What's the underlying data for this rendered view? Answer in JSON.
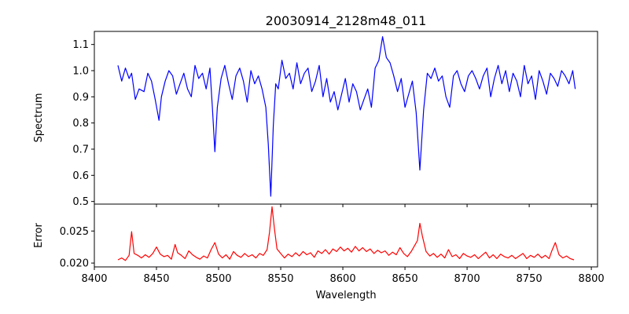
{
  "chart_data": [
    {
      "type": "line",
      "title": "20030914_2128m48_011",
      "ylabel": "Spectrum",
      "xlim": [
        8400,
        8805
      ],
      "ylim": [
        0.49,
        1.15
      ],
      "xticks": [
        8400,
        8450,
        8500,
        8550,
        8600,
        8650,
        8700,
        8750,
        8800
      ],
      "xtick_labels_visible": false,
      "yticks": [
        0.5,
        0.6,
        0.7,
        0.8,
        0.9,
        1.0,
        1.1
      ],
      "ytick_labels": [
        "0.5",
        "0.6",
        "0.7",
        "0.8",
        "0.9",
        "1.0",
        "1.1"
      ],
      "color": "#0000ff",
      "series": [
        {
          "x": [
            8419,
            8422,
            8425,
            8428,
            8430,
            8433,
            8436,
            8440,
            8443,
            8446,
            8449,
            8452,
            8454,
            8457,
            8460,
            8463,
            8466,
            8469,
            8472,
            8475,
            8478,
            8481,
            8484,
            8487,
            8490,
            8493,
            8495,
            8497,
            8499,
            8502,
            8505,
            8508,
            8511,
            8514,
            8517,
            8520,
            8523,
            8526,
            8529,
            8532,
            8535,
            8538,
            8540,
            8542,
            8544,
            8546,
            8548,
            8551,
            8554,
            8557,
            8560,
            8563,
            8566,
            8569,
            8572,
            8575,
            8578,
            8581,
            8584,
            8587,
            8590,
            8593,
            8596,
            8599,
            8602,
            8605,
            8608,
            8611,
            8614,
            8617,
            8620,
            8623,
            8626,
            8629,
            8632,
            8635,
            8638,
            8641,
            8644,
            8647,
            8650,
            8653,
            8656,
            8659,
            8662,
            8665,
            8668,
            8671,
            8674,
            8677,
            8680,
            8683,
            8686,
            8689,
            8692,
            8695,
            8698,
            8701,
            8704,
            8707,
            8710,
            8713,
            8716,
            8719,
            8722,
            8725,
            8728,
            8731,
            8734,
            8737,
            8740,
            8743,
            8746,
            8749,
            8752,
            8755,
            8758,
            8761,
            8764,
            8767,
            8770,
            8773,
            8776,
            8779,
            8782,
            8785,
            8787
          ],
          "y": [
            1.02,
            0.96,
            1.01,
            0.97,
            0.99,
            0.89,
            0.93,
            0.92,
            0.99,
            0.96,
            0.89,
            0.81,
            0.9,
            0.96,
            1.0,
            0.98,
            0.91,
            0.95,
            0.99,
            0.93,
            0.9,
            1.02,
            0.97,
            0.99,
            0.93,
            1.01,
            0.86,
            0.69,
            0.86,
            0.97,
            1.02,
            0.95,
            0.89,
            0.98,
            1.01,
            0.96,
            0.88,
            1.0,
            0.95,
            0.98,
            0.93,
            0.86,
            0.72,
            0.52,
            0.79,
            0.95,
            0.93,
            1.04,
            0.97,
            0.99,
            0.93,
            1.03,
            0.95,
            0.99,
            1.01,
            0.92,
            0.96,
            1.02,
            0.9,
            0.97,
            0.88,
            0.92,
            0.85,
            0.91,
            0.97,
            0.88,
            0.95,
            0.92,
            0.85,
            0.89,
            0.93,
            0.86,
            1.01,
            1.04,
            1.13,
            1.05,
            1.03,
            0.98,
            0.92,
            0.97,
            0.86,
            0.91,
            0.96,
            0.84,
            0.62,
            0.85,
            0.99,
            0.97,
            1.01,
            0.96,
            0.98,
            0.9,
            0.86,
            0.98,
            1.0,
            0.95,
            0.92,
            0.98,
            1.0,
            0.97,
            0.93,
            0.98,
            1.01,
            0.9,
            0.97,
            1.02,
            0.95,
            1.0,
            0.92,
            0.99,
            0.96,
            0.9,
            1.02,
            0.95,
            0.98,
            0.89,
            1.0,
            0.96,
            0.91,
            0.99,
            0.97,
            0.94,
            1.0,
            0.98,
            0.95,
            1.0,
            0.93
          ]
        }
      ]
    },
    {
      "type": "line",
      "title": "",
      "xlabel": "Wavelength",
      "ylabel": "Error",
      "xlim": [
        8400,
        8805
      ],
      "ylim": [
        0.0194,
        0.0292
      ],
      "xticks": [
        8400,
        8450,
        8500,
        8550,
        8600,
        8650,
        8700,
        8750,
        8800
      ],
      "xtick_labels": [
        "8400",
        "8450",
        "8500",
        "8550",
        "8600",
        "8650",
        "8700",
        "8750",
        "8800"
      ],
      "yticks": [
        0.02,
        0.025
      ],
      "ytick_labels": [
        "0.020",
        "0.025"
      ],
      "color": "#ff0000",
      "series": [
        {
          "x": [
            8419,
            8422,
            8425,
            8428,
            8430,
            8432,
            8435,
            8438,
            8441,
            8444,
            8447,
            8450,
            8453,
            8456,
            8459,
            8462,
            8465,
            8467,
            8470,
            8473,
            8476,
            8479,
            8482,
            8485,
            8488,
            8491,
            8494,
            8497,
            8500,
            8503,
            8506,
            8509,
            8512,
            8515,
            8518,
            8521,
            8524,
            8527,
            8530,
            8533,
            8536,
            8539,
            8541,
            8543,
            8545,
            8547,
            8550,
            8553,
            8556,
            8559,
            8562,
            8565,
            8568,
            8571,
            8574,
            8577,
            8580,
            8583,
            8586,
            8589,
            8592,
            8595,
            8598,
            8601,
            8604,
            8607,
            8610,
            8613,
            8616,
            8619,
            8622,
            8625,
            8628,
            8631,
            8634,
            8637,
            8640,
            8643,
            8646,
            8649,
            8652,
            8655,
            8658,
            8660,
            8662,
            8664,
            8667,
            8670,
            8673,
            8676,
            8679,
            8682,
            8685,
            8688,
            8691,
            8694,
            8697,
            8700,
            8703,
            8706,
            8709,
            8712,
            8715,
            8718,
            8721,
            8724,
            8727,
            8730,
            8733,
            8736,
            8739,
            8742,
            8745,
            8748,
            8751,
            8754,
            8757,
            8760,
            8763,
            8766,
            8768,
            8771,
            8774,
            8777,
            8780,
            8783,
            8786
          ],
          "y": [
            0.0205,
            0.0208,
            0.0204,
            0.0212,
            0.0249,
            0.0215,
            0.0212,
            0.0208,
            0.0213,
            0.0209,
            0.0215,
            0.0225,
            0.0214,
            0.021,
            0.0212,
            0.0206,
            0.0229,
            0.0216,
            0.0212,
            0.0207,
            0.0219,
            0.0213,
            0.0209,
            0.0206,
            0.0211,
            0.0208,
            0.0221,
            0.0232,
            0.0214,
            0.0208,
            0.0213,
            0.0206,
            0.0218,
            0.0212,
            0.0209,
            0.0215,
            0.021,
            0.0213,
            0.0208,
            0.0215,
            0.0212,
            0.0221,
            0.0248,
            0.0288,
            0.0253,
            0.0222,
            0.0215,
            0.0208,
            0.0214,
            0.021,
            0.0216,
            0.0211,
            0.0218,
            0.0213,
            0.0216,
            0.0209,
            0.0219,
            0.0215,
            0.0221,
            0.0214,
            0.0222,
            0.0218,
            0.0225,
            0.0219,
            0.0223,
            0.0217,
            0.0226,
            0.0219,
            0.0224,
            0.0218,
            0.0222,
            0.0215,
            0.022,
            0.0216,
            0.0219,
            0.0212,
            0.0217,
            0.0213,
            0.0224,
            0.0215,
            0.021,
            0.0218,
            0.0228,
            0.0235,
            0.0262,
            0.0242,
            0.0218,
            0.0211,
            0.0215,
            0.0209,
            0.0214,
            0.0208,
            0.0221,
            0.021,
            0.0213,
            0.0207,
            0.0215,
            0.0211,
            0.0209,
            0.0213,
            0.0207,
            0.0212,
            0.0217,
            0.0208,
            0.0213,
            0.0207,
            0.0214,
            0.021,
            0.0208,
            0.0212,
            0.0207,
            0.0211,
            0.0215,
            0.0207,
            0.0212,
            0.0209,
            0.0214,
            0.0208,
            0.0212,
            0.0207,
            0.0218,
            0.0232,
            0.0213,
            0.0208,
            0.0211,
            0.0207,
            0.0205
          ]
        }
      ]
    }
  ]
}
